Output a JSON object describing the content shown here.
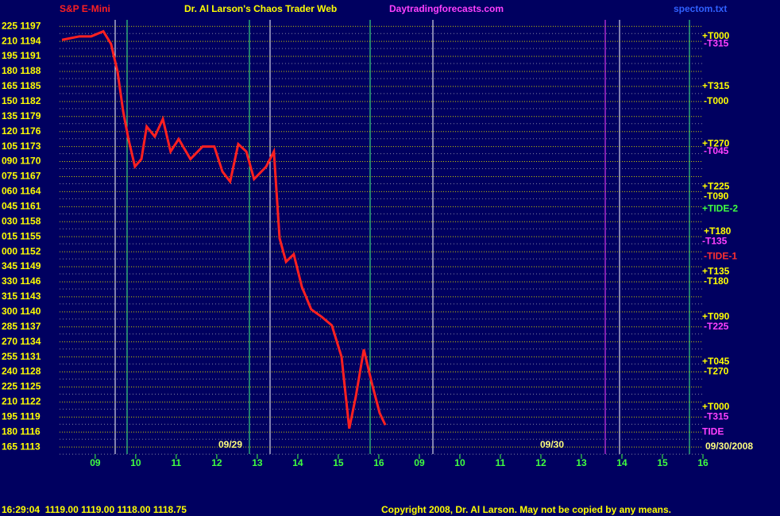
{
  "chart_data": {
    "type": "line",
    "title": "Dr. Al Larson's Chaos Trader Web",
    "symbol": "S&P E-Mini",
    "site": "Daytradingforecasts.com",
    "file": "spectom.txt",
    "day_labels": [
      "09/29",
      "09/30"
    ],
    "date": "09/30/2008",
    "status": "16:29:04  1119.00 1119.00 1118.00 1118.75",
    "copyright": "Copyright 2008, Dr. Al Larson. May not be copied by any means.",
    "categories": [
      "09",
      "10",
      "11",
      "12",
      "13",
      "14",
      "15",
      "16",
      "09",
      "10",
      "11",
      "12",
      "13",
      "14",
      "15",
      "16"
    ],
    "xlim": [
      -0.88,
      15.0
    ],
    "ylim": [
      1111.6,
      1198.3
    ],
    "yticks": [
      {
        "value": 1197,
        "label": "225 1197"
      },
      {
        "value": 1194,
        "label": "210 1194"
      },
      {
        "value": 1191,
        "label": "195 1191"
      },
      {
        "value": 1188,
        "label": "180 1188"
      },
      {
        "value": 1185,
        "label": "165 1185"
      },
      {
        "value": 1182,
        "label": "150 1182"
      },
      {
        "value": 1179,
        "label": "135 1179"
      },
      {
        "value": 1176,
        "label": "120 1176"
      },
      {
        "value": 1173,
        "label": "105 1173"
      },
      {
        "value": 1170,
        "label": "090 1170"
      },
      {
        "value": 1167,
        "label": "075 1167"
      },
      {
        "value": 1164,
        "label": "060 1164"
      },
      {
        "value": 1161,
        "label": "045 1161"
      },
      {
        "value": 1158,
        "label": "030 1158"
      },
      {
        "value": 1155,
        "label": "015 1155"
      },
      {
        "value": 1152,
        "label": "000 1152"
      },
      {
        "value": 1149,
        "label": "345 1149"
      },
      {
        "value": 1146,
        "label": "330 1146"
      },
      {
        "value": 1143,
        "label": "315 1143"
      },
      {
        "value": 1140,
        "label": "300 1140"
      },
      {
        "value": 1137,
        "label": "285 1137"
      },
      {
        "value": 1134,
        "label": "270 1134"
      },
      {
        "value": 1131,
        "label": "255 1131"
      },
      {
        "value": 1128,
        "label": "240 1128"
      },
      {
        "value": 1125,
        "label": "225 1125"
      },
      {
        "value": 1122,
        "label": "210 1122"
      },
      {
        "value": 1119,
        "label": "195 1119"
      },
      {
        "value": 1116,
        "label": "180 1116"
      },
      {
        "value": 1113,
        "label": "165 1113"
      }
    ],
    "grid": true,
    "series": [
      {
        "name": "S&P E-Mini",
        "color": "#ff2020",
        "x": [
          -0.82,
          -0.39,
          -0.1,
          0.2,
          0.39,
          0.55,
          0.69,
          0.82,
          0.98,
          1.14,
          1.27,
          1.47,
          1.67,
          1.86,
          2.06,
          2.35,
          2.65,
          2.94,
          3.14,
          3.33,
          3.53,
          3.73,
          3.92,
          4.22,
          4.41,
          4.55,
          4.71,
          4.9,
          5.1,
          5.33,
          5.59,
          5.84,
          6.08,
          6.27,
          6.43,
          6.63,
          6.82,
          7.02,
          7.16
        ],
        "values": [
          1194.3,
          1195,
          1195,
          1196,
          1193.5,
          1188,
          1180,
          1174.5,
          1169,
          1170.5,
          1177,
          1175,
          1178.5,
          1172,
          1174.5,
          1170.5,
          1173,
          1173,
          1168,
          1166,
          1173.5,
          1172,
          1166.5,
          1169,
          1172,
          1154.7,
          1150,
          1151.5,
          1145,
          1140.5,
          1139,
          1137.3,
          1131,
          1116.7,
          1123,
          1132.5,
          1126,
          1119.8,
          1117.4
        ]
      }
    ],
    "annotations": [
      {
        "text": "+T000",
        "value": 1195,
        "color": "#ffff00"
      },
      {
        "text": "-T315",
        "value": 1193.5,
        "color": "#ff40ff"
      },
      {
        "text": "+T315",
        "value": 1185,
        "color": "#ffff00"
      },
      {
        "text": "-T000",
        "value": 1182,
        "color": "#ffff00"
      },
      {
        "text": "+T270",
        "value": 1173.5,
        "color": "#ffff00"
      },
      {
        "text": "-T045",
        "value": 1172,
        "color": "#ff40ff"
      },
      {
        "text": "+T225",
        "value": 1165,
        "color": "#ffff00"
      },
      {
        "text": "-T090",
        "value": 1163,
        "color": "#ffff00"
      },
      {
        "text": "+TIDE-2",
        "value": 1160.5,
        "color": "#40ff40"
      },
      {
        "text": "+T180",
        "value": 1156,
        "color": "#ffff00"
      },
      {
        "text": "-T135",
        "value": 1154,
        "color": "#ff40ff"
      },
      {
        "text": "-TIDE-1",
        "value": 1151,
        "color": "#ff3030"
      },
      {
        "text": "+T135",
        "value": 1148,
        "color": "#ffff00"
      },
      {
        "text": "-T180",
        "value": 1146,
        "color": "#ffff00"
      },
      {
        "text": "+T090",
        "value": 1139,
        "color": "#ffff00"
      },
      {
        "text": "-T225",
        "value": 1137,
        "color": "#ff40ff"
      },
      {
        "text": "+T045",
        "value": 1130,
        "color": "#ffff00"
      },
      {
        "text": "-T270",
        "value": 1128,
        "color": "#ffff00"
      },
      {
        "text": "+T000",
        "value": 1121,
        "color": "#ffff00"
      },
      {
        "text": "-T315",
        "value": 1119,
        "color": "#ff40ff"
      },
      {
        "text": "TIDE",
        "value": 1116,
        "color": "#ff40ff"
      }
    ]
  }
}
